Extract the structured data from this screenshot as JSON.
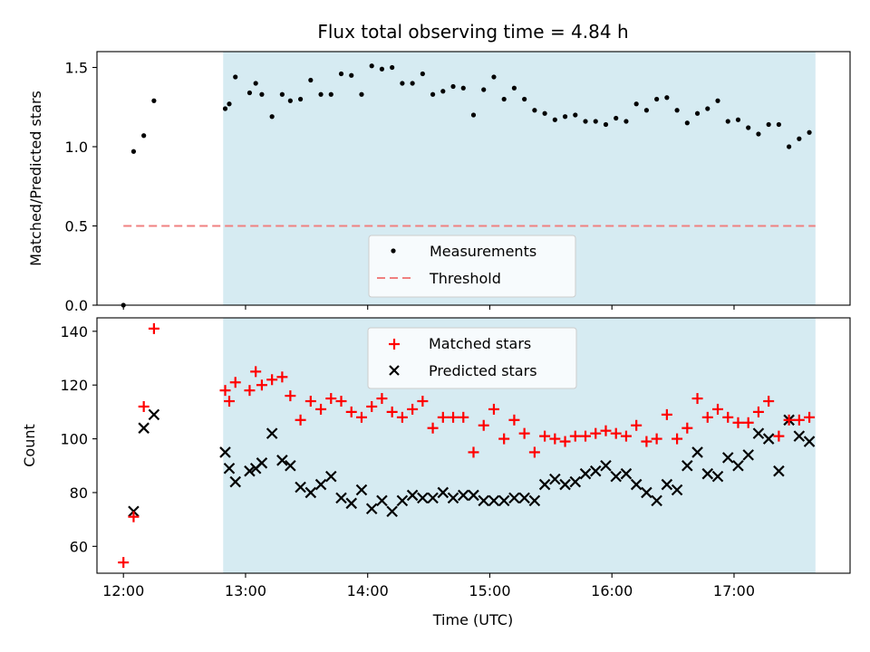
{
  "chart_data": [
    {
      "type": "scatter",
      "title": "Flux total observing time = 4.84 h",
      "ylabel": "Matched/Predicted stars",
      "xlim": [
        "11:47",
        "17:57"
      ],
      "ylim": [
        0,
        1.6
      ],
      "yticks": [
        0.0,
        0.5,
        1.0,
        1.5
      ],
      "ytick_labels": [
        "0.0",
        "0.5",
        "1.0",
        "1.5"
      ],
      "shaded_interval": [
        "12:49",
        "17:40"
      ],
      "colors": {
        "shade": "#add8e6",
        "measurements": "#000000",
        "threshold": "#f08080"
      },
      "legend": {
        "position": "lower center",
        "entries": [
          "Measurements",
          "Threshold"
        ]
      },
      "series": [
        {
          "name": "Measurements",
          "marker": "dot",
          "points": [
            [
              "12:00",
              0.0
            ],
            [
              "12:05",
              0.97
            ],
            [
              "12:10",
              1.07
            ],
            [
              "12:15",
              1.29
            ],
            [
              "12:50",
              1.24
            ],
            [
              "12:52",
              1.27
            ],
            [
              "12:55",
              1.44
            ],
            [
              "13:02",
              1.34
            ],
            [
              "13:05",
              1.4
            ],
            [
              "13:08",
              1.33
            ],
            [
              "13:13",
              1.19
            ],
            [
              "13:18",
              1.33
            ],
            [
              "13:22",
              1.29
            ],
            [
              "13:27",
              1.3
            ],
            [
              "13:32",
              1.42
            ],
            [
              "13:37",
              1.33
            ],
            [
              "13:42",
              1.33
            ],
            [
              "13:47",
              1.46
            ],
            [
              "13:52",
              1.45
            ],
            [
              "13:57",
              1.33
            ],
            [
              "14:02",
              1.51
            ],
            [
              "14:07",
              1.49
            ],
            [
              "14:12",
              1.5
            ],
            [
              "14:17",
              1.4
            ],
            [
              "14:22",
              1.4
            ],
            [
              "14:27",
              1.46
            ],
            [
              "14:32",
              1.33
            ],
            [
              "14:37",
              1.35
            ],
            [
              "14:42",
              1.38
            ],
            [
              "14:47",
              1.37
            ],
            [
              "14:52",
              1.2
            ],
            [
              "14:57",
              1.36
            ],
            [
              "15:02",
              1.44
            ],
            [
              "15:07",
              1.3
            ],
            [
              "15:12",
              1.37
            ],
            [
              "15:17",
              1.3
            ],
            [
              "15:22",
              1.23
            ],
            [
              "15:27",
              1.21
            ],
            [
              "15:32",
              1.17
            ],
            [
              "15:37",
              1.19
            ],
            [
              "15:42",
              1.2
            ],
            [
              "15:47",
              1.16
            ],
            [
              "15:52",
              1.16
            ],
            [
              "15:57",
              1.14
            ],
            [
              "16:02",
              1.18
            ],
            [
              "16:07",
              1.16
            ],
            [
              "16:12",
              1.27
            ],
            [
              "16:17",
              1.23
            ],
            [
              "16:22",
              1.3
            ],
            [
              "16:27",
              1.31
            ],
            [
              "16:32",
              1.23
            ],
            [
              "16:37",
              1.15
            ],
            [
              "16:42",
              1.21
            ],
            [
              "16:47",
              1.24
            ],
            [
              "16:52",
              1.29
            ],
            [
              "16:57",
              1.16
            ],
            [
              "17:02",
              1.17
            ],
            [
              "17:07",
              1.12
            ],
            [
              "17:12",
              1.08
            ],
            [
              "17:17",
              1.14
            ],
            [
              "17:22",
              1.14
            ],
            [
              "17:27",
              1.0
            ],
            [
              "17:32",
              1.05
            ],
            [
              "17:37",
              1.09
            ]
          ]
        },
        {
          "name": "Threshold",
          "style": "dashed",
          "points": [
            [
              "12:00",
              0.5
            ],
            [
              "17:40",
              0.5
            ]
          ]
        }
      ]
    },
    {
      "type": "scatter",
      "xlabel": "Time (UTC)",
      "ylabel": "Count",
      "xlim": [
        "11:47",
        "17:57"
      ],
      "ylim": [
        50,
        145
      ],
      "yticks": [
        60,
        80,
        100,
        120,
        140
      ],
      "ytick_labels": [
        "60",
        "80",
        "100",
        "120",
        "140"
      ],
      "xticks": [
        "12:00",
        "13:00",
        "14:00",
        "15:00",
        "16:00",
        "17:00"
      ],
      "xtick_labels": [
        "12:00",
        "13:00",
        "14:00",
        "15:00",
        "16:00",
        "17:00"
      ],
      "shaded_interval": [
        "12:49",
        "17:40"
      ],
      "colors": {
        "shade": "#add8e6",
        "matched": "#ff0000",
        "predicted": "#000000"
      },
      "legend": {
        "position": "upper center",
        "entries": [
          "Matched stars",
          "Predicted stars"
        ]
      },
      "series": [
        {
          "name": "Matched stars",
          "marker": "plus",
          "points": [
            [
              "12:00",
              54
            ],
            [
              "12:05",
              71
            ],
            [
              "12:10",
              112
            ],
            [
              "12:15",
              141
            ],
            [
              "12:50",
              118
            ],
            [
              "12:52",
              114
            ],
            [
              "12:55",
              121
            ],
            [
              "13:02",
              118
            ],
            [
              "13:05",
              125
            ],
            [
              "13:08",
              120
            ],
            [
              "13:13",
              122
            ],
            [
              "13:18",
              123
            ],
            [
              "13:22",
              116
            ],
            [
              "13:27",
              107
            ],
            [
              "13:32",
              114
            ],
            [
              "13:37",
              111
            ],
            [
              "13:42",
              115
            ],
            [
              "13:47",
              114
            ],
            [
              "13:52",
              110
            ],
            [
              "13:57",
              108
            ],
            [
              "14:02",
              112
            ],
            [
              "14:07",
              115
            ],
            [
              "14:12",
              110
            ],
            [
              "14:17",
              108
            ],
            [
              "14:22",
              111
            ],
            [
              "14:27",
              114
            ],
            [
              "14:32",
              104
            ],
            [
              "14:37",
              108
            ],
            [
              "14:42",
              108
            ],
            [
              "14:47",
              108
            ],
            [
              "14:52",
              95
            ],
            [
              "14:57",
              105
            ],
            [
              "15:02",
              111
            ],
            [
              "15:07",
              100
            ],
            [
              "15:12",
              107
            ],
            [
              "15:17",
              102
            ],
            [
              "15:22",
              95
            ],
            [
              "15:27",
              101
            ],
            [
              "15:32",
              100
            ],
            [
              "15:37",
              99
            ],
            [
              "15:42",
              101
            ],
            [
              "15:47",
              101
            ],
            [
              "15:52",
              102
            ],
            [
              "15:57",
              103
            ],
            [
              "16:02",
              102
            ],
            [
              "16:07",
              101
            ],
            [
              "16:12",
              105
            ],
            [
              "16:17",
              99
            ],
            [
              "16:22",
              100
            ],
            [
              "16:27",
              109
            ],
            [
              "16:32",
              100
            ],
            [
              "16:37",
              104
            ],
            [
              "16:42",
              115
            ],
            [
              "16:47",
              108
            ],
            [
              "16:52",
              111
            ],
            [
              "16:57",
              108
            ],
            [
              "17:02",
              106
            ],
            [
              "17:07",
              106
            ],
            [
              "17:12",
              110
            ],
            [
              "17:17",
              114
            ],
            [
              "17:22",
              101
            ],
            [
              "17:27",
              107
            ],
            [
              "17:32",
              107
            ],
            [
              "17:37",
              108
            ]
          ]
        },
        {
          "name": "Predicted stars",
          "marker": "x",
          "points": [
            [
              "12:05",
              73
            ],
            [
              "12:10",
              104
            ],
            [
              "12:15",
              109
            ],
            [
              "12:50",
              95
            ],
            [
              "12:52",
              89
            ],
            [
              "12:55",
              84
            ],
            [
              "13:02",
              88
            ],
            [
              "13:05",
              89
            ],
            [
              "13:08",
              91
            ],
            [
              "13:13",
              102
            ],
            [
              "13:18",
              92
            ],
            [
              "13:22",
              90
            ],
            [
              "13:27",
              82
            ],
            [
              "13:32",
              80
            ],
            [
              "13:37",
              83
            ],
            [
              "13:42",
              86
            ],
            [
              "13:47",
              78
            ],
            [
              "13:52",
              76
            ],
            [
              "13:57",
              81
            ],
            [
              "14:02",
              74
            ],
            [
              "14:07",
              77
            ],
            [
              "14:12",
              73
            ],
            [
              "14:17",
              77
            ],
            [
              "14:22",
              79
            ],
            [
              "14:27",
              78
            ],
            [
              "14:32",
              78
            ],
            [
              "14:37",
              80
            ],
            [
              "14:42",
              78
            ],
            [
              "14:47",
              79
            ],
            [
              "14:52",
              79
            ],
            [
              "14:57",
              77
            ],
            [
              "15:02",
              77
            ],
            [
              "15:07",
              77
            ],
            [
              "15:12",
              78
            ],
            [
              "15:17",
              78
            ],
            [
              "15:22",
              77
            ],
            [
              "15:27",
              83
            ],
            [
              "15:32",
              85
            ],
            [
              "15:37",
              83
            ],
            [
              "15:42",
              84
            ],
            [
              "15:47",
              87
            ],
            [
              "15:52",
              88
            ],
            [
              "15:57",
              90
            ],
            [
              "16:02",
              86
            ],
            [
              "16:07",
              87
            ],
            [
              "16:12",
              83
            ],
            [
              "16:17",
              80
            ],
            [
              "16:22",
              77
            ],
            [
              "16:27",
              83
            ],
            [
              "16:32",
              81
            ],
            [
              "16:37",
              90
            ],
            [
              "16:42",
              95
            ],
            [
              "16:47",
              87
            ],
            [
              "16:52",
              86
            ],
            [
              "16:57",
              93
            ],
            [
              "17:02",
              90
            ],
            [
              "17:07",
              94
            ],
            [
              "17:12",
              102
            ],
            [
              "17:17",
              100
            ],
            [
              "17:22",
              88
            ],
            [
              "17:27",
              107
            ],
            [
              "17:32",
              101
            ],
            [
              "17:37",
              99
            ]
          ]
        }
      ]
    }
  ]
}
